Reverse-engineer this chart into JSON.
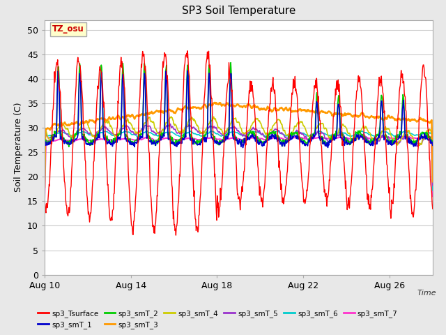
{
  "title": "SP3 Soil Temperature",
  "ylabel": "Soil Temperature (C)",
  "xlabel": "Time",
  "ylim": [
    0,
    52
  ],
  "yticks": [
    0,
    5,
    10,
    15,
    20,
    25,
    30,
    35,
    40,
    45,
    50
  ],
  "fig_bg_color": "#e8e8e8",
  "plot_bg_color": "#ffffff",
  "tz_label": "TZ_osu",
  "tz_bg": "#ffffcc",
  "tz_border": "#aaaaaa",
  "tz_text_color": "#cc0000",
  "legend": [
    {
      "label": "sp3_Tsurface",
      "color": "#ff0000"
    },
    {
      "label": "sp3_smT_1",
      "color": "#0000cc"
    },
    {
      "label": "sp3_smT_2",
      "color": "#00cc00"
    },
    {
      "label": "sp3_smT_3",
      "color": "#ff9900"
    },
    {
      "label": "sp3_smT_4",
      "color": "#cccc00"
    },
    {
      "label": "sp3_smT_5",
      "color": "#9933cc"
    },
    {
      "label": "sp3_smT_6",
      "color": "#00cccc"
    },
    {
      "label": "sp3_smT_7",
      "color": "#ff33cc"
    }
  ],
  "xaxis_label_dates": [
    "Aug 10",
    "Aug 14",
    "Aug 18",
    "Aug 22",
    "Aug 26"
  ],
  "xaxis_label_positions": [
    0,
    4,
    8,
    12,
    16
  ]
}
